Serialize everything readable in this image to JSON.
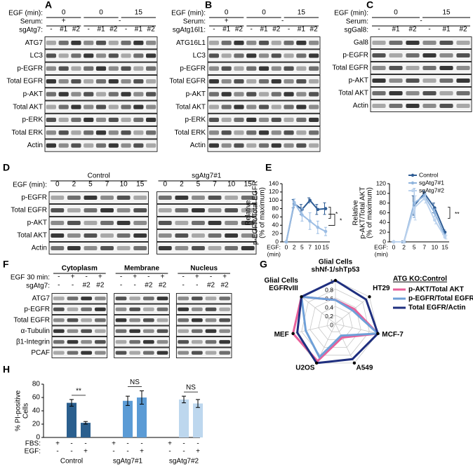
{
  "panels": {
    "A": {
      "letter": "A",
      "headers": [
        {
          "label": "EGF (min):",
          "lanes": [
            "0",
            null,
            null,
            "0",
            null,
            null,
            "15",
            null,
            null
          ]
        },
        {
          "label": "Serum:",
          "lanes": [
            "+",
            null,
            null,
            "-",
            null,
            null,
            null,
            null,
            null
          ]
        },
        {
          "label": "sgAtg7:",
          "lanes": [
            "-",
            "#1",
            "#2",
            "-",
            "#1",
            "#2",
            "-",
            "#1",
            "#2"
          ]
        }
      ],
      "rows": [
        "ATG7",
        "LC3",
        "p-EGFR",
        "Total EGFR",
        "p-AKT",
        "Total AKT",
        "p-ERK",
        "Total ERK",
        "Actin"
      ]
    },
    "B": {
      "letter": "B",
      "headers": [
        {
          "label": "EGF (min):",
          "lanes": [
            "0",
            null,
            null,
            "0",
            null,
            null,
            "15",
            null,
            null
          ]
        },
        {
          "label": "Serum:",
          "lanes": [
            "+",
            null,
            null,
            "-",
            null,
            null,
            null,
            null,
            null
          ]
        },
        {
          "label": "sgAtg16l1:",
          "lanes": [
            "-",
            "#1",
            "#2",
            "-",
            "#1",
            "#2",
            "-",
            "#1",
            "#2"
          ]
        }
      ],
      "rows": [
        "ATG16L1",
        "LC3",
        "p-EGFR",
        "Total EGFR",
        "p-AKT",
        "Total AKT",
        "p-ERK",
        "Total ERK",
        "Actin"
      ]
    },
    "C": {
      "letter": "C",
      "headers": [
        {
          "label": "EGF (min):",
          "lanes": [
            "0",
            null,
            null,
            "15",
            null,
            null
          ]
        },
        {
          "label": "Serum:",
          "lanes": [
            "-",
            null,
            null,
            null,
            null,
            null
          ]
        },
        {
          "label": "sgGal8:",
          "lanes": [
            "-",
            "#1",
            "#2",
            "-",
            "#1",
            "#2"
          ]
        }
      ],
      "rows": [
        "Gal8",
        "p-EGFR",
        "Total EGFR",
        "p-AKT",
        "Total AKT",
        "Actin"
      ]
    },
    "D": {
      "letter": "D",
      "headers": [
        {
          "lanes": [
            "Control",
            null,
            null,
            null,
            null,
            null,
            "sgAtg7#1",
            null,
            null,
            null,
            null,
            null
          ]
        },
        {
          "label": "EGF (min):",
          "lanes": [
            "0",
            "2",
            "5",
            "7",
            "10",
            "15",
            "0",
            "2",
            "5",
            "7",
            "10",
            "15"
          ]
        }
      ],
      "rows": [
        "p-EGFR",
        "Total EGFR",
        "p-AKT",
        "Total AKT",
        "Actin"
      ]
    },
    "F": {
      "letter": "F",
      "headers": [
        {
          "lanes": [
            "Cytoplasm",
            null,
            null,
            null,
            "Membrane",
            null,
            null,
            null,
            "Nucleus",
            null,
            null,
            null
          ]
        },
        {
          "label": "EGF 30 min:",
          "lanes": [
            "-",
            "+",
            "-",
            "+",
            "-",
            "+",
            "-",
            "+",
            "-",
            "+",
            "-",
            "+"
          ]
        },
        {
          "label": "sgAtg7:",
          "lanes": [
            "-",
            "-",
            "#2",
            "#2",
            "-",
            "-",
            "#2",
            "#2",
            "-",
            "-",
            "#2",
            "#2"
          ]
        }
      ],
      "rows": [
        "ATG7",
        "p-EGFR",
        "Total EGFR",
        "α-Tubulin",
        "β1-Integrin",
        "PCAF"
      ]
    },
    "E": {
      "letter": "E"
    },
    "G": {
      "letter": "G"
    },
    "H": {
      "letter": "H"
    }
  },
  "chart_data": [
    {
      "type": "line",
      "ylabel": [
        "Relative",
        "p-EGFR/Total EGFR",
        "(% of maximum)"
      ],
      "xlabel": [
        "EGF:",
        "(min)"
      ],
      "categories": [
        "0",
        "2",
        "5",
        "7",
        "10",
        "15"
      ],
      "ylim": [
        0,
        140
      ],
      "yticks": [
        0,
        20,
        40,
        60,
        80,
        100,
        120,
        140
      ],
      "series": [
        {
          "name": "Control",
          "color": "#2f5d95",
          "values": [
            0,
            92,
            78,
            100,
            78,
            80
          ],
          "errors": [
            0,
            10,
            12,
            6,
            12,
            14
          ]
        },
        {
          "name": "sgAtg7#1",
          "color": "#9bbde4",
          "values": [
            0,
            95,
            65,
            50,
            35,
            25
          ],
          "errors": [
            0,
            8,
            15,
            20,
            15,
            10
          ]
        }
      ],
      "annotations": [
        "*",
        "*"
      ]
    },
    {
      "type": "line",
      "ylabel": [
        "Relative",
        "p-AKT/Total AKT",
        "(% of maximum)"
      ],
      "xlabel": [
        "EGF:",
        "(min)"
      ],
      "categories": [
        "0",
        "2",
        "5",
        "7",
        "10",
        "15"
      ],
      "ylim": [
        0,
        120
      ],
      "yticks": [
        0,
        20,
        40,
        60,
        80,
        100,
        120
      ],
      "legend": "top-right",
      "series": [
        {
          "name": "Control",
          "color": "#2f5d95",
          "values": [
            0,
            0,
            75,
            100,
            70,
            20
          ],
          "errors": [
            0,
            2,
            20,
            5,
            10,
            5
          ]
        },
        {
          "name": "sgAtg7#1",
          "color": "#8fb4dd",
          "values": [
            0,
            0,
            80,
            95,
            60,
            12
          ],
          "errors": [
            0,
            2,
            30,
            8,
            8,
            4
          ]
        },
        {
          "name": "sgAtg7#2",
          "color": "#bcd3ee",
          "values": [
            0,
            0,
            70,
            90,
            45,
            10
          ],
          "errors": [
            0,
            2,
            25,
            10,
            8,
            4
          ]
        }
      ],
      "annotations": [
        "**"
      ]
    },
    {
      "type": "radar",
      "axes": [
        [
          "Glial Cells",
          "shNf-1/shTp53"
        ],
        [
          "HT29"
        ],
        [
          "MCF-7"
        ],
        [
          "A549"
        ],
        [
          "U2OS"
        ],
        [
          "MEF"
        ],
        [
          "Glial Cells",
          "EGFRvIII"
        ]
      ],
      "rlim": [
        0,
        1
      ],
      "rticks": [
        0,
        0.2,
        0.4,
        0.6,
        0.8,
        1
      ],
      "legend_title": "ATG KO:Control",
      "series": [
        {
          "name": "p-AKT/Total AKT",
          "color": "#e8609a",
          "values": [
            0.55,
            0.55,
            1.0,
            0.35,
            0.95,
            1.0,
            1.0
          ]
        },
        {
          "name": "p-EGFR/Total EGFR",
          "color": "#6fa0d8",
          "values": [
            0.55,
            0.5,
            1.0,
            0.3,
            0.85,
            0.7,
            1.0
          ]
        },
        {
          "name": "Total EGFR/Actin",
          "color": "#1f2f7f",
          "values": [
            1.0,
            0.9,
            1.0,
            0.9,
            1.0,
            0.9,
            1.0
          ]
        }
      ]
    },
    {
      "type": "bar",
      "ylabel": [
        "% PI-positive",
        "Cells"
      ],
      "ylim": [
        0,
        80
      ],
      "yticks": [
        0,
        20,
        40,
        60,
        80
      ],
      "groups": [
        {
          "name": "Control",
          "color": "#2b5f8e",
          "values": [
            0,
            52,
            22
          ],
          "errors": [
            0,
            5,
            2
          ]
        },
        {
          "name": "sgAtg7#1",
          "color": "#5b9bd5",
          "values": [
            0,
            55,
            60
          ],
          "errors": [
            0,
            7,
            10
          ]
        },
        {
          "name": "sgAtg7#2",
          "color": "#bdd7ee",
          "values": [
            0,
            57,
            51
          ],
          "errors": [
            0,
            5,
            6
          ]
        }
      ],
      "conditions": [
        {
          "label": "FBS:",
          "values": [
            "+",
            "-",
            "-"
          ]
        },
        {
          "label": "EGF:",
          "values": [
            "-",
            "-",
            "+"
          ]
        }
      ],
      "annotations": [
        "**",
        "NS",
        "NS"
      ]
    }
  ]
}
